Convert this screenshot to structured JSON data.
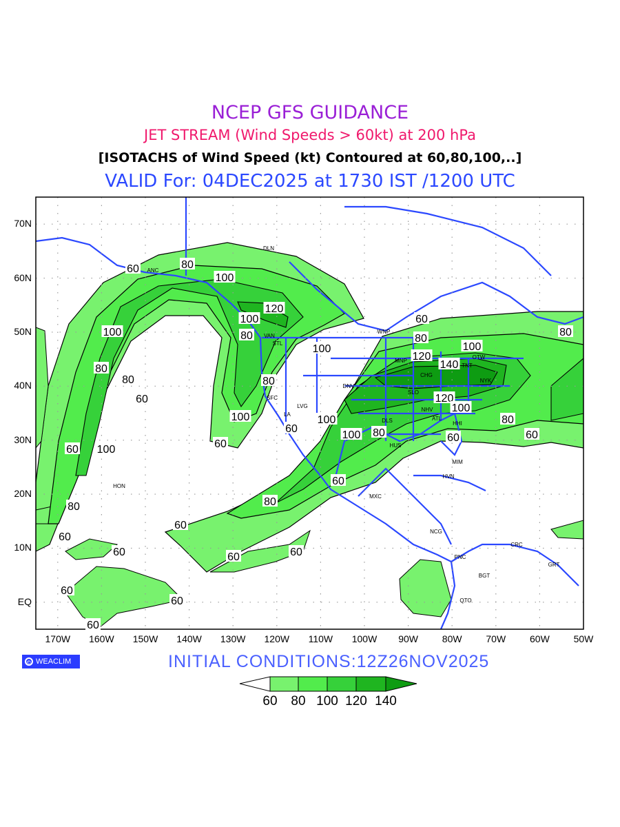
{
  "titles": {
    "line1": "NCEP GFS GUIDANCE",
    "line2": "JET STREAM (Wind Speeds > 60kt) at 200 hPa",
    "line3": "[ISOTACHS of Wind Speed (kt) Contoured at 60,80,100,..]",
    "line4": "VALID For: 04DEC2025 at 1730 IST /1200 UTC"
  },
  "axes": {
    "lat_labels": [
      "70N",
      "60N",
      "50N",
      "40N",
      "30N",
      "20N",
      "10N",
      "EQ"
    ],
    "lon_labels": [
      "170W",
      "160W",
      "150W",
      "140W",
      "130W",
      "120W",
      "110W",
      "100W",
      "90W",
      "80W",
      "70W",
      "60W",
      "50W"
    ]
  },
  "cities": [
    "DLN",
    "ANC",
    "VAN",
    "STL",
    "SFC",
    "LVG",
    "LA",
    "DNV",
    "WNP",
    "MNP",
    "CHG",
    "SLO",
    "TNT",
    "OTW",
    "NYK",
    "NHV",
    "ATL",
    "DLS",
    "HUS",
    "HHI",
    "MIM",
    "HVN",
    "MXC",
    "NCG",
    "PNC",
    "BGT",
    "CRC",
    "GRT",
    "QTO",
    "HON"
  ],
  "contour_labels": [
    "60",
    "80",
    "100",
    "120",
    "100",
    "80",
    "100",
    "100",
    "80",
    "80",
    "60",
    "60",
    "100",
    "80",
    "60",
    "100",
    "80",
    "60",
    "60",
    "60",
    "80",
    "120",
    "140",
    "100",
    "120",
    "100",
    "80",
    "60",
    "80",
    "60",
    "100",
    "100",
    "80",
    "60",
    "60",
    "80",
    "60",
    "60",
    "60",
    "60",
    "60",
    "60"
  ],
  "logo": "WEACLIM",
  "initial_conditions": "INITIAL  CONDITIONS:12Z26NOV2025",
  "colorbar": {
    "labels": [
      "60",
      "80",
      "100",
      "120",
      "140"
    ],
    "colors": [
      "#ffffff",
      "#78f26e",
      "#52ec4c",
      "#36d13a",
      "#1fb520",
      "#0e9c12"
    ]
  }
}
